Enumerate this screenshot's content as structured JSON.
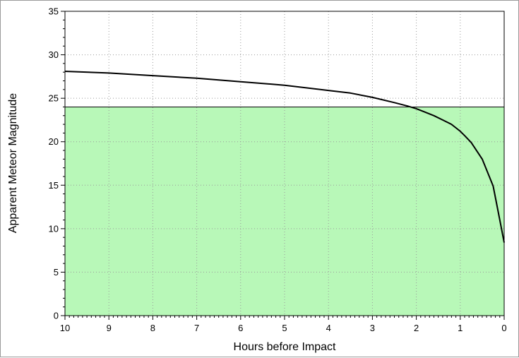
{
  "chart_data": {
    "type": "line",
    "title": "",
    "xlabel": "Hours before Impact",
    "ylabel": "Apparent Meteor Magnitude",
    "xlim": [
      10,
      0
    ],
    "ylim": [
      0,
      35
    ],
    "x_reversed": true,
    "grid": true,
    "x_ticks": [
      10,
      9,
      8,
      7,
      6,
      5,
      4,
      3,
      2,
      1,
      0
    ],
    "y_ticks": [
      0,
      5,
      10,
      15,
      20,
      25,
      30,
      35
    ],
    "threshold": {
      "value": 24,
      "fill_color": "#b8f8b8",
      "line_color": "#000000"
    },
    "series": [
      {
        "color": "#000000",
        "x": [
          10,
          9,
          8,
          7,
          6,
          5,
          4,
          3.5,
          3,
          2.5,
          2.2,
          2,
          1.8,
          1.6,
          1.4,
          1.2,
          1,
          0.9,
          0.75,
          0.5,
          0.25,
          0.1,
          0
        ],
        "y": [
          28.1,
          27.9,
          27.6,
          27.3,
          26.9,
          26.5,
          25.9,
          25.6,
          25.1,
          24.5,
          24.1,
          23.8,
          23.4,
          23.0,
          22.5,
          22.0,
          21.2,
          20.7,
          19.9,
          18.0,
          14.9,
          11.0,
          8.4
        ]
      }
    ]
  }
}
